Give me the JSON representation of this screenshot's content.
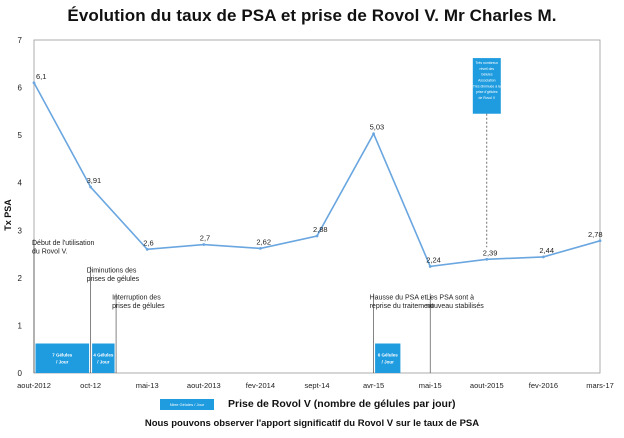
{
  "chart_data": {
    "type": "line",
    "title": "Évolution  du taux de PSA et prise de Rovol V. Mr Charles M.",
    "subtitle": "Nous pouvons observer l'apport significatif du Rovol V sur le taux de PSA",
    "ylabel": "Tx PSA",
    "xlabel": "",
    "ylim": [
      0,
      7
    ],
    "yticks": [
      "0",
      "1",
      "2",
      "3",
      "4",
      "5",
      "6",
      "7"
    ],
    "grid": false,
    "color": "#6aa6e0",
    "categories": [
      "aout-2012",
      "oct-12",
      "mai-13",
      "aout-2013",
      "fev-2014",
      "sept-14",
      "avr-15",
      "mai-15",
      "aout-2015",
      "fev-2016",
      "mars-17"
    ],
    "series": [
      {
        "values": [
          6.1,
          3.91,
          2.6,
          2.7,
          2.62,
          2.88,
          5.03,
          2.24,
          2.39,
          2.44,
          2.78
        ]
      }
    ],
    "data_labels": [
      "6,1",
      "3,91",
      "2,6",
      "2,7",
      "2,62",
      "2,88",
      "5,03",
      "2,24",
      "2,39",
      "2,44",
      "2,78"
    ],
    "annotations": [
      {
        "lines": [
          "Début de l'utilisation",
          "du Rovol V."
        ],
        "category": 0,
        "y": 2.65
      },
      {
        "lines": [
          "Diminutions des",
          "prises de gélules"
        ],
        "category": 1,
        "y": 2.07
      },
      {
        "lines": [
          "Interruption des",
          "prises de gélules"
        ],
        "category": 1.45,
        "y": 1.5
      },
      {
        "lines": [
          "Hausse du PSA et",
          "reprise du traitement"
        ],
        "category": 6,
        "y": 1.5
      },
      {
        "lines": [
          "Les PSA sont à",
          "nouveau stabilisés"
        ],
        "category": 7,
        "y": 1.5
      }
    ],
    "dose_boxes": [
      {
        "lines": [
          "7 Gélules",
          "/ Jour"
        ],
        "from": 0,
        "to": 1
      },
      {
        "lines": [
          "4 Gélules",
          "/ Jour"
        ],
        "from": 1,
        "to": 1.45
      },
      {
        "lines": [
          "6 Gélules",
          "/ Jour"
        ],
        "from": 6,
        "to": 6.5
      }
    ],
    "upper_box": {
      "lines": [
        "Très nombreux",
        "réveil des",
        "Gélules",
        "Association",
        "Très diminuée à la",
        "prise d'gélules",
        "de Rovol V"
      ],
      "category": 8
    },
    "legend": {
      "label": "Prise de Rovol V (nombre de gélules par jour)",
      "swatch_text": "Nbre Gélules / Jour",
      "color": "#1f9ce0"
    }
  }
}
